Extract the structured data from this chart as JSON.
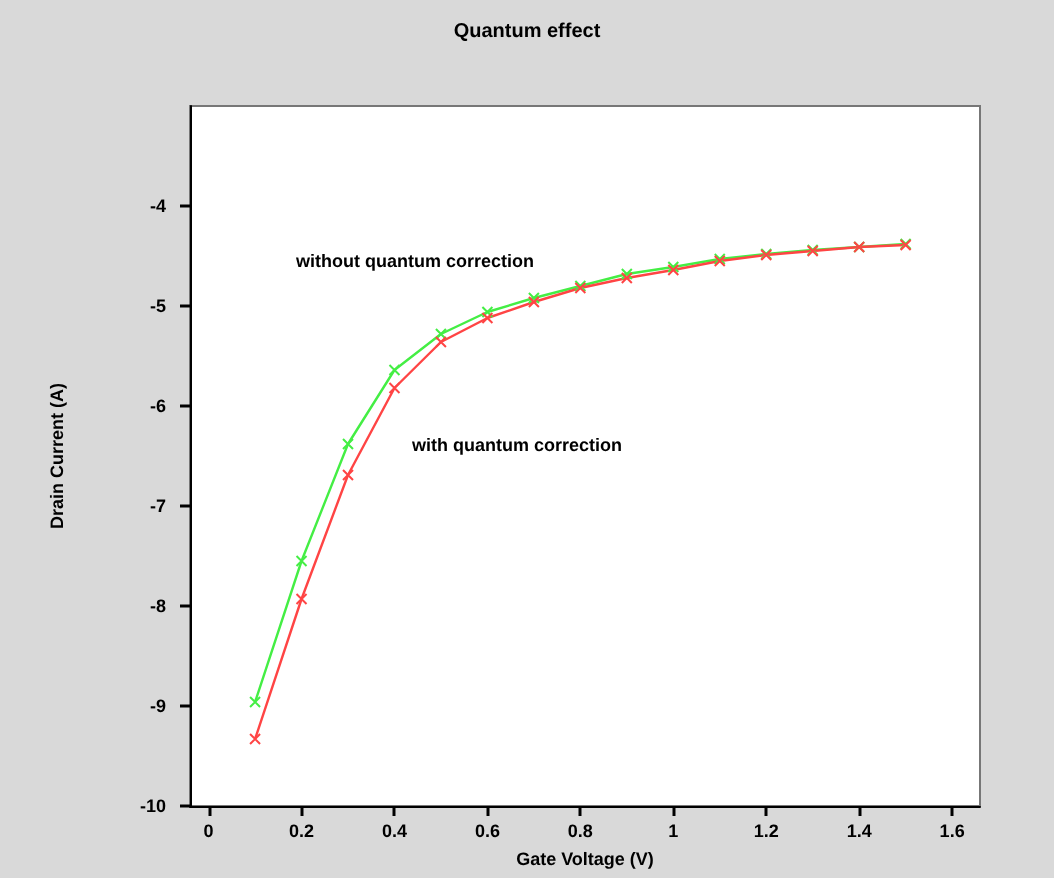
{
  "chart_data": {
    "type": "line",
    "title": "Quantum effect",
    "xlabel": "Gate Voltage (V)",
    "ylabel": "Drain Current (A)",
    "x": [
      0.1,
      0.2,
      0.3,
      0.4,
      0.5,
      0.6,
      0.7,
      0.8,
      0.9,
      1.0,
      1.1,
      1.2,
      1.3,
      1.4,
      1.5
    ],
    "series": [
      {
        "color": "#44ee44",
        "values": [
          -8.96,
          -7.55,
          -6.38,
          -5.64,
          -5.28,
          -5.06,
          -4.92,
          -4.8,
          -4.68,
          -4.61,
          -4.53,
          -4.48,
          -4.44,
          -4.41,
          -4.38
        ]
      },
      {
        "color": "#ff4444",
        "values": [
          -9.33,
          -7.93,
          -6.69,
          -5.82,
          -5.36,
          -5.12,
          -4.96,
          -4.82,
          -4.72,
          -4.64,
          -4.55,
          -4.49,
          -4.45,
          -4.41,
          -4.39
        ]
      }
    ],
    "annotations": [
      "without quantum correction",
      "with quantum correction"
    ],
    "xlim": [
      -0.04,
      1.66
    ],
    "xticks": [
      0,
      0.2,
      0.4,
      0.6,
      0.8,
      1,
      1.2,
      1.4,
      1.6
    ],
    "ylim": [
      -10,
      -3
    ],
    "yticks": [
      -10,
      -9,
      -8,
      -7,
      -6,
      -5,
      -4
    ],
    "grid": false,
    "marker": "cross",
    "line_style": "solid"
  }
}
